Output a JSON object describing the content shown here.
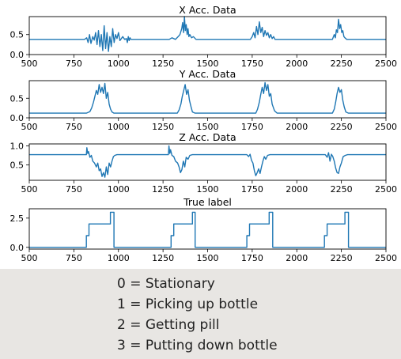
{
  "chart_data": [
    {
      "type": "line",
      "title": "X Acc. Data",
      "xlim": [
        500,
        2500
      ],
      "ylim": [
        0,
        0.95
      ],
      "xticks": [
        "500",
        "750",
        "1000",
        "1250",
        "1500",
        "1750",
        "2000",
        "2250",
        "2500"
      ],
      "yticks": [
        "0.0",
        "0.5"
      ],
      "series": [
        {
          "color": "#1f77b4",
          "x": [
            500,
            810,
            822,
            830,
            838,
            846,
            856,
            864,
            872,
            880,
            888,
            896,
            904,
            912,
            920,
            928,
            936,
            944,
            952,
            960,
            968,
            976,
            984,
            992,
            1000,
            1008,
            1016,
            1024,
            1035,
            1045,
            1050,
            1055,
            1060,
            1065,
            1070,
            1075,
            1285,
            1300,
            1320,
            1335,
            1345,
            1355,
            1360,
            1365,
            1370,
            1375,
            1380,
            1385,
            1390,
            1395,
            1400,
            1410,
            1420,
            1435,
            1450,
            1740,
            1750,
            1758,
            1766,
            1774,
            1782,
            1790,
            1798,
            1806,
            1814,
            1822,
            1830,
            1838,
            1846,
            1854,
            1862,
            1870,
            1878,
            1890,
            2200,
            2210,
            2216,
            2222,
            2228,
            2234,
            2240,
            2246,
            2252,
            2258,
            2264,
            2270,
            2280,
            2500
          ],
          "y": [
            0.38,
            0.38,
            0.42,
            0.3,
            0.5,
            0.28,
            0.45,
            0.36,
            0.55,
            0.25,
            0.6,
            0.2,
            0.5,
            0.1,
            0.72,
            0.15,
            0.55,
            0.08,
            0.45,
            0.2,
            0.65,
            0.3,
            0.5,
            0.4,
            0.55,
            0.35,
            0.4,
            0.45,
            0.38,
            0.4,
            0.3,
            0.45,
            0.35,
            0.42,
            0.38,
            0.38,
            0.38,
            0.42,
            0.38,
            0.45,
            0.5,
            0.65,
            0.8,
            0.55,
            0.95,
            0.6,
            0.75,
            0.5,
            0.65,
            0.45,
            0.5,
            0.42,
            0.45,
            0.38,
            0.38,
            0.38,
            0.45,
            0.55,
            0.42,
            0.7,
            0.5,
            0.82,
            0.55,
            0.68,
            0.45,
            0.6,
            0.48,
            0.55,
            0.42,
            0.5,
            0.4,
            0.45,
            0.38,
            0.38,
            0.38,
            0.5,
            0.42,
            0.62,
            0.55,
            0.88,
            0.65,
            0.75,
            0.55,
            0.6,
            0.45,
            0.42,
            0.38,
            0.38
          ]
        }
      ]
    },
    {
      "type": "line",
      "title": "Y Acc. Data",
      "xlim": [
        500,
        2500
      ],
      "ylim": [
        0,
        0.95
      ],
      "xticks": [
        "500",
        "750",
        "1000",
        "1250",
        "1500",
        "1750",
        "2000",
        "2250",
        "2500"
      ],
      "yticks": [
        "0.0",
        "0.5"
      ],
      "series": [
        {
          "color": "#1f77b4",
          "x": [
            500,
            820,
            840,
            850,
            860,
            868,
            876,
            884,
            892,
            900,
            908,
            916,
            924,
            932,
            940,
            948,
            956,
            964,
            975,
            990,
            1050,
            1330,
            1340,
            1350,
            1358,
            1366,
            1374,
            1382,
            1390,
            1398,
            1406,
            1415,
            1430,
            1770,
            1780,
            1790,
            1798,
            1806,
            1814,
            1822,
            1830,
            1838,
            1846,
            1854,
            1862,
            1875,
            1890,
            2200,
            2210,
            2218,
            2226,
            2234,
            2242,
            2250,
            2258,
            2266,
            2275,
            2290,
            2500
          ],
          "y": [
            0.12,
            0.12,
            0.16,
            0.25,
            0.4,
            0.55,
            0.7,
            0.6,
            0.85,
            0.65,
            0.78,
            0.62,
            0.88,
            0.5,
            0.65,
            0.35,
            0.22,
            0.15,
            0.12,
            0.12,
            0.12,
            0.12,
            0.2,
            0.35,
            0.55,
            0.7,
            0.85,
            0.6,
            0.72,
            0.45,
            0.3,
            0.15,
            0.12,
            0.12,
            0.22,
            0.4,
            0.6,
            0.78,
            0.62,
            0.9,
            0.7,
            0.85,
            0.55,
            0.62,
            0.35,
            0.18,
            0.12,
            0.12,
            0.22,
            0.4,
            0.62,
            0.78,
            0.65,
            0.72,
            0.45,
            0.28,
            0.15,
            0.12,
            0.12
          ]
        }
      ]
    },
    {
      "type": "line",
      "title": "Z Acc. Data",
      "xlim": [
        500,
        2500
      ],
      "ylim": [
        0.1,
        1.05
      ],
      "xticks": [
        "500",
        "750",
        "1000",
        "1250",
        "1500",
        "1750",
        "2000",
        "2250",
        "2500"
      ],
      "yticks": [
        "0.5",
        "1.0"
      ],
      "series": [
        {
          "color": "#1f77b4",
          "x": [
            500,
            820,
            823,
            828,
            832,
            840,
            848,
            856,
            866,
            876,
            884,
            892,
            900,
            908,
            916,
            924,
            932,
            940,
            948,
            956,
            964,
            972,
            980,
            992,
            1280,
            1283,
            1288,
            1292,
            1300,
            1310,
            1320,
            1332,
            1340,
            1348,
            1356,
            1364,
            1372,
            1380,
            1390,
            1400,
            1415,
            1720,
            1730,
            1738,
            1746,
            1754,
            1762,
            1770,
            1778,
            1786,
            1794,
            1802,
            1810,
            1818,
            1826,
            1836,
            1850,
            1865,
            2160,
            2170,
            2178,
            2186,
            2194,
            2202,
            2210,
            2218,
            2226,
            2234,
            2242,
            2250,
            2260,
            2272,
            2285,
            2500
          ],
          "y": [
            0.77,
            0.77,
            0.95,
            0.8,
            0.85,
            0.7,
            0.75,
            0.6,
            0.55,
            0.45,
            0.55,
            0.35,
            0.4,
            0.2,
            0.3,
            0.18,
            0.45,
            0.25,
            0.55,
            0.45,
            0.6,
            0.72,
            0.75,
            0.77,
            0.77,
            1.0,
            0.8,
            0.9,
            0.75,
            0.72,
            0.6,
            0.55,
            0.45,
            0.3,
            0.38,
            0.6,
            0.45,
            0.7,
            0.65,
            0.75,
            0.77,
            0.77,
            0.72,
            0.78,
            0.62,
            0.55,
            0.35,
            0.22,
            0.3,
            0.4,
            0.28,
            0.45,
            0.6,
            0.72,
            0.65,
            0.75,
            0.77,
            0.77,
            0.77,
            0.7,
            0.82,
            0.6,
            0.78,
            0.72,
            0.6,
            0.42,
            0.3,
            0.28,
            0.45,
            0.55,
            0.72,
            0.75,
            0.77,
            0.77
          ]
        }
      ]
    },
    {
      "type": "line",
      "title": "True label",
      "xlim": [
        500,
        2500
      ],
      "ylim": [
        -0.15,
        3.3
      ],
      "xticks": [
        "500",
        "750",
        "1000",
        "1250",
        "1500",
        "1750",
        "2000",
        "2250",
        "2500"
      ],
      "yticks": [
        "0.0",
        "2.5"
      ],
      "series": [
        {
          "color": "#1f77b4",
          "x": [
            500,
            820,
            820,
            835,
            835,
            955,
            955,
            975,
            975,
            1295,
            1295,
            1310,
            1310,
            1415,
            1415,
            1430,
            1430,
            1720,
            1720,
            1735,
            1735,
            1845,
            1845,
            1865,
            1865,
            2155,
            2155,
            2170,
            2170,
            2270,
            2270,
            2290,
            2290,
            2500
          ],
          "y": [
            0,
            0,
            1,
            1,
            2,
            2,
            3,
            3,
            0,
            0,
            1,
            1,
            2,
            2,
            3,
            3,
            0,
            0,
            1,
            1,
            2,
            2,
            3,
            3,
            0,
            0,
            1,
            1,
            2,
            2,
            3,
            3,
            0,
            0
          ]
        }
      ]
    }
  ],
  "legend": {
    "lines": [
      "0 = Stationary",
      "1 = Picking up bottle",
      "2 = Getting pill",
      "3 = Putting down bottle"
    ]
  }
}
